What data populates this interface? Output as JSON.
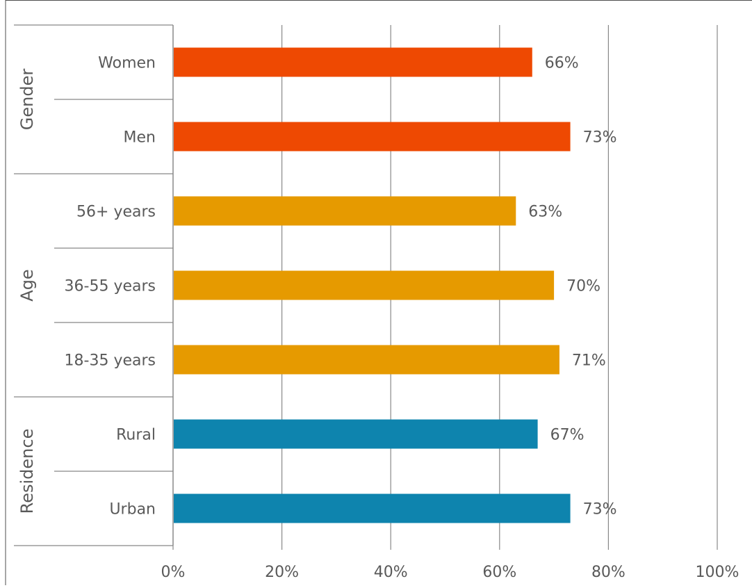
{
  "chart_data": {
    "type": "bar",
    "orientation": "horizontal",
    "groups": [
      {
        "label": "Gender",
        "color": "#EE4902",
        "categories": [
          "Women",
          "Men"
        ],
        "values": [
          66,
          73
        ],
        "value_labels": [
          "66%",
          "73%"
        ]
      },
      {
        "label": "Age",
        "color": "#E69A00",
        "categories": [
          "56+ years",
          "36-55 years",
          "18-35 years"
        ],
        "values": [
          63,
          70,
          71
        ],
        "value_labels": [
          "63%",
          "70%",
          "71%"
        ]
      },
      {
        "label": "Residence",
        "color": "#0E84AE",
        "categories": [
          "Rural",
          "Urban"
        ],
        "values": [
          67,
          73
        ],
        "value_labels": [
          "67%",
          "73%"
        ]
      }
    ],
    "x_ticks": [
      "0%",
      "20%",
      "40%",
      "60%",
      "80%",
      "100%"
    ],
    "xlim": [
      0,
      100
    ],
    "grid": true,
    "legend": "none",
    "title": "",
    "xlabel": "",
    "ylabel": ""
  }
}
